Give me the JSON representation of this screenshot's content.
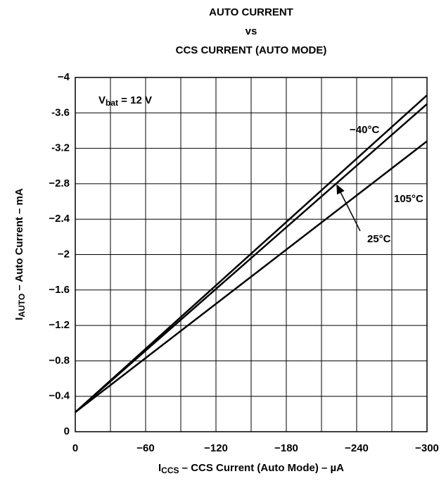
{
  "chart_data": {
    "type": "line",
    "title": [
      "AUTO CURRENT",
      "vs",
      "CCS CURRENT (AUTO MODE)"
    ],
    "x_label": {
      "symbol": "I",
      "subscript": "CCS",
      "text": " – CCS Current (Auto Mode) – µA"
    },
    "y_label": {
      "symbol": "I",
      "subscript": "AUTO",
      "text": " – Auto Current – mA"
    },
    "annotation": {
      "symbol": "V",
      "subscript": "bat",
      "text": " = 12 V"
    },
    "x": [
      0,
      -300
    ],
    "series": [
      {
        "name": "−40°C",
        "color": "#000000",
        "values": [
          -0.22,
          -3.8
        ]
      },
      {
        "name": "25°C",
        "color": "#000000",
        "values": [
          -0.22,
          -3.7
        ]
      },
      {
        "name": "105°C",
        "color": "#000000",
        "values": [
          -0.22,
          -3.28
        ]
      }
    ],
    "xlim": [
      0,
      -300
    ],
    "xticks": [
      0,
      {
        "value": -60,
        "label": "−60"
      },
      {
        "value": -120,
        "label": "−120"
      },
      {
        "value": -180,
        "label": "−180"
      },
      {
        "value": -240,
        "label": "−240"
      },
      {
        "value": -300,
        "label": "−300"
      }
    ],
    "x_minor_grid": [
      -30,
      -90,
      -150,
      -210,
      -270
    ],
    "ylim": [
      0,
      -4
    ],
    "yticks": [
      0,
      {
        "value": -0.4,
        "label": "−0.4"
      },
      {
        "value": -0.8,
        "label": "−0.8"
      },
      {
        "value": -1.2,
        "label": "−1.2"
      },
      {
        "value": -1.6,
        "label": "−1.6"
      },
      {
        "value": -2,
        "label": "−2"
      },
      {
        "value": -2.4,
        "label": "−2.4"
      },
      {
        "value": -2.8,
        "label": "−2.8"
      },
      -3.2,
      -3.6,
      {
        "value": -4,
        "label": "−4"
      }
    ],
    "grid": true
  }
}
